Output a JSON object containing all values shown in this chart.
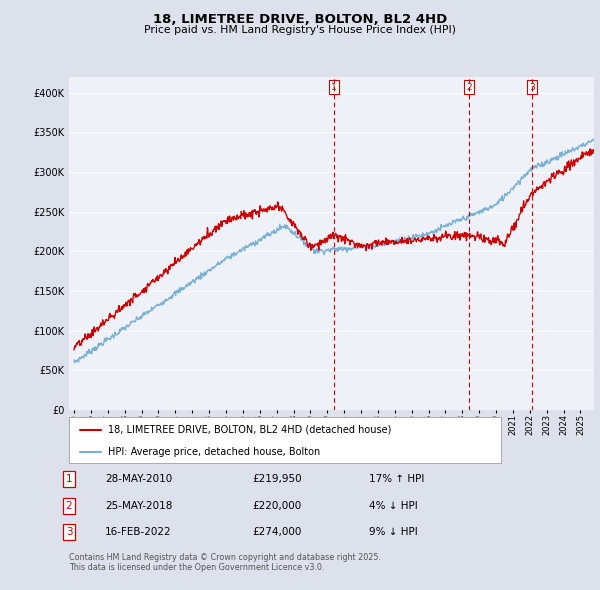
{
  "title": "18, LIMETREE DRIVE, BOLTON, BL2 4HD",
  "subtitle": "Price paid vs. HM Land Registry's House Price Index (HPI)",
  "red_label": "18, LIMETREE DRIVE, BOLTON, BL2 4HD (detached house)",
  "blue_label": "HPI: Average price, detached house, Bolton",
  "footer1": "Contains HM Land Registry data © Crown copyright and database right 2025.",
  "footer2": "This data is licensed under the Open Government Licence v3.0.",
  "transactions": [
    {
      "num": "1",
      "date": "28-MAY-2010",
      "price": "£219,950",
      "change": "17% ↑ HPI"
    },
    {
      "num": "2",
      "date": "25-MAY-2018",
      "price": "£220,000",
      "change": "4% ↓ HPI"
    },
    {
      "num": "3",
      "date": "16-FEB-2022",
      "price": "£274,000",
      "change": "9% ↓ HPI"
    }
  ],
  "vline_x": [
    2010.41,
    2018.41,
    2022.12
  ],
  "ylim": [
    0,
    420000
  ],
  "yticks": [
    0,
    50000,
    100000,
    150000,
    200000,
    250000,
    300000,
    350000,
    400000
  ],
  "bg_color": "#dde1eb",
  "plot_bg": "#eef1f8",
  "red_color": "#cc0000",
  "blue_color": "#7ab0d4",
  "vline_color": "#cc0000",
  "xlim_left": 1994.7,
  "xlim_right": 2025.8
}
